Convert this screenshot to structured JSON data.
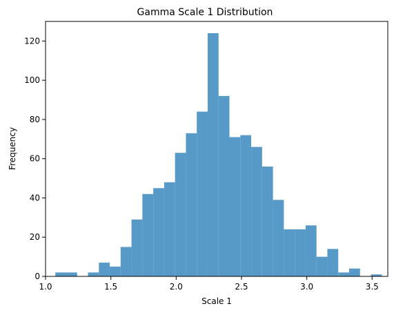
{
  "chart_data": {
    "type": "bar",
    "title": "Gamma Scale 1 Distribution",
    "xlabel": "Scale 1",
    "ylabel": "Frequency",
    "xlim": [
      1.0,
      3.62
    ],
    "ylim": [
      0,
      130
    ],
    "x_ticks": [
      1.0,
      1.5,
      2.0,
      2.5,
      3.0,
      3.5
    ],
    "x_tick_labels": [
      "1.0",
      "1.5",
      "2.0",
      "2.5",
      "3.0",
      "3.5"
    ],
    "y_ticks": [
      0,
      20,
      40,
      60,
      80,
      100,
      120
    ],
    "y_tick_labels": [
      "0",
      "20",
      "40",
      "60",
      "80",
      "100",
      "120"
    ],
    "bin_start": 1.075,
    "bin_width": 0.0833,
    "values": [
      2,
      2,
      0,
      2,
      7,
      5,
      15,
      29,
      42,
      45,
      48,
      63,
      73,
      84,
      124,
      92,
      71,
      72,
      66,
      56,
      39,
      24,
      24,
      26,
      10,
      14,
      2,
      4,
      0,
      1
    ],
    "bar_color": "#5799c7",
    "grid": false,
    "legend": "none"
  }
}
